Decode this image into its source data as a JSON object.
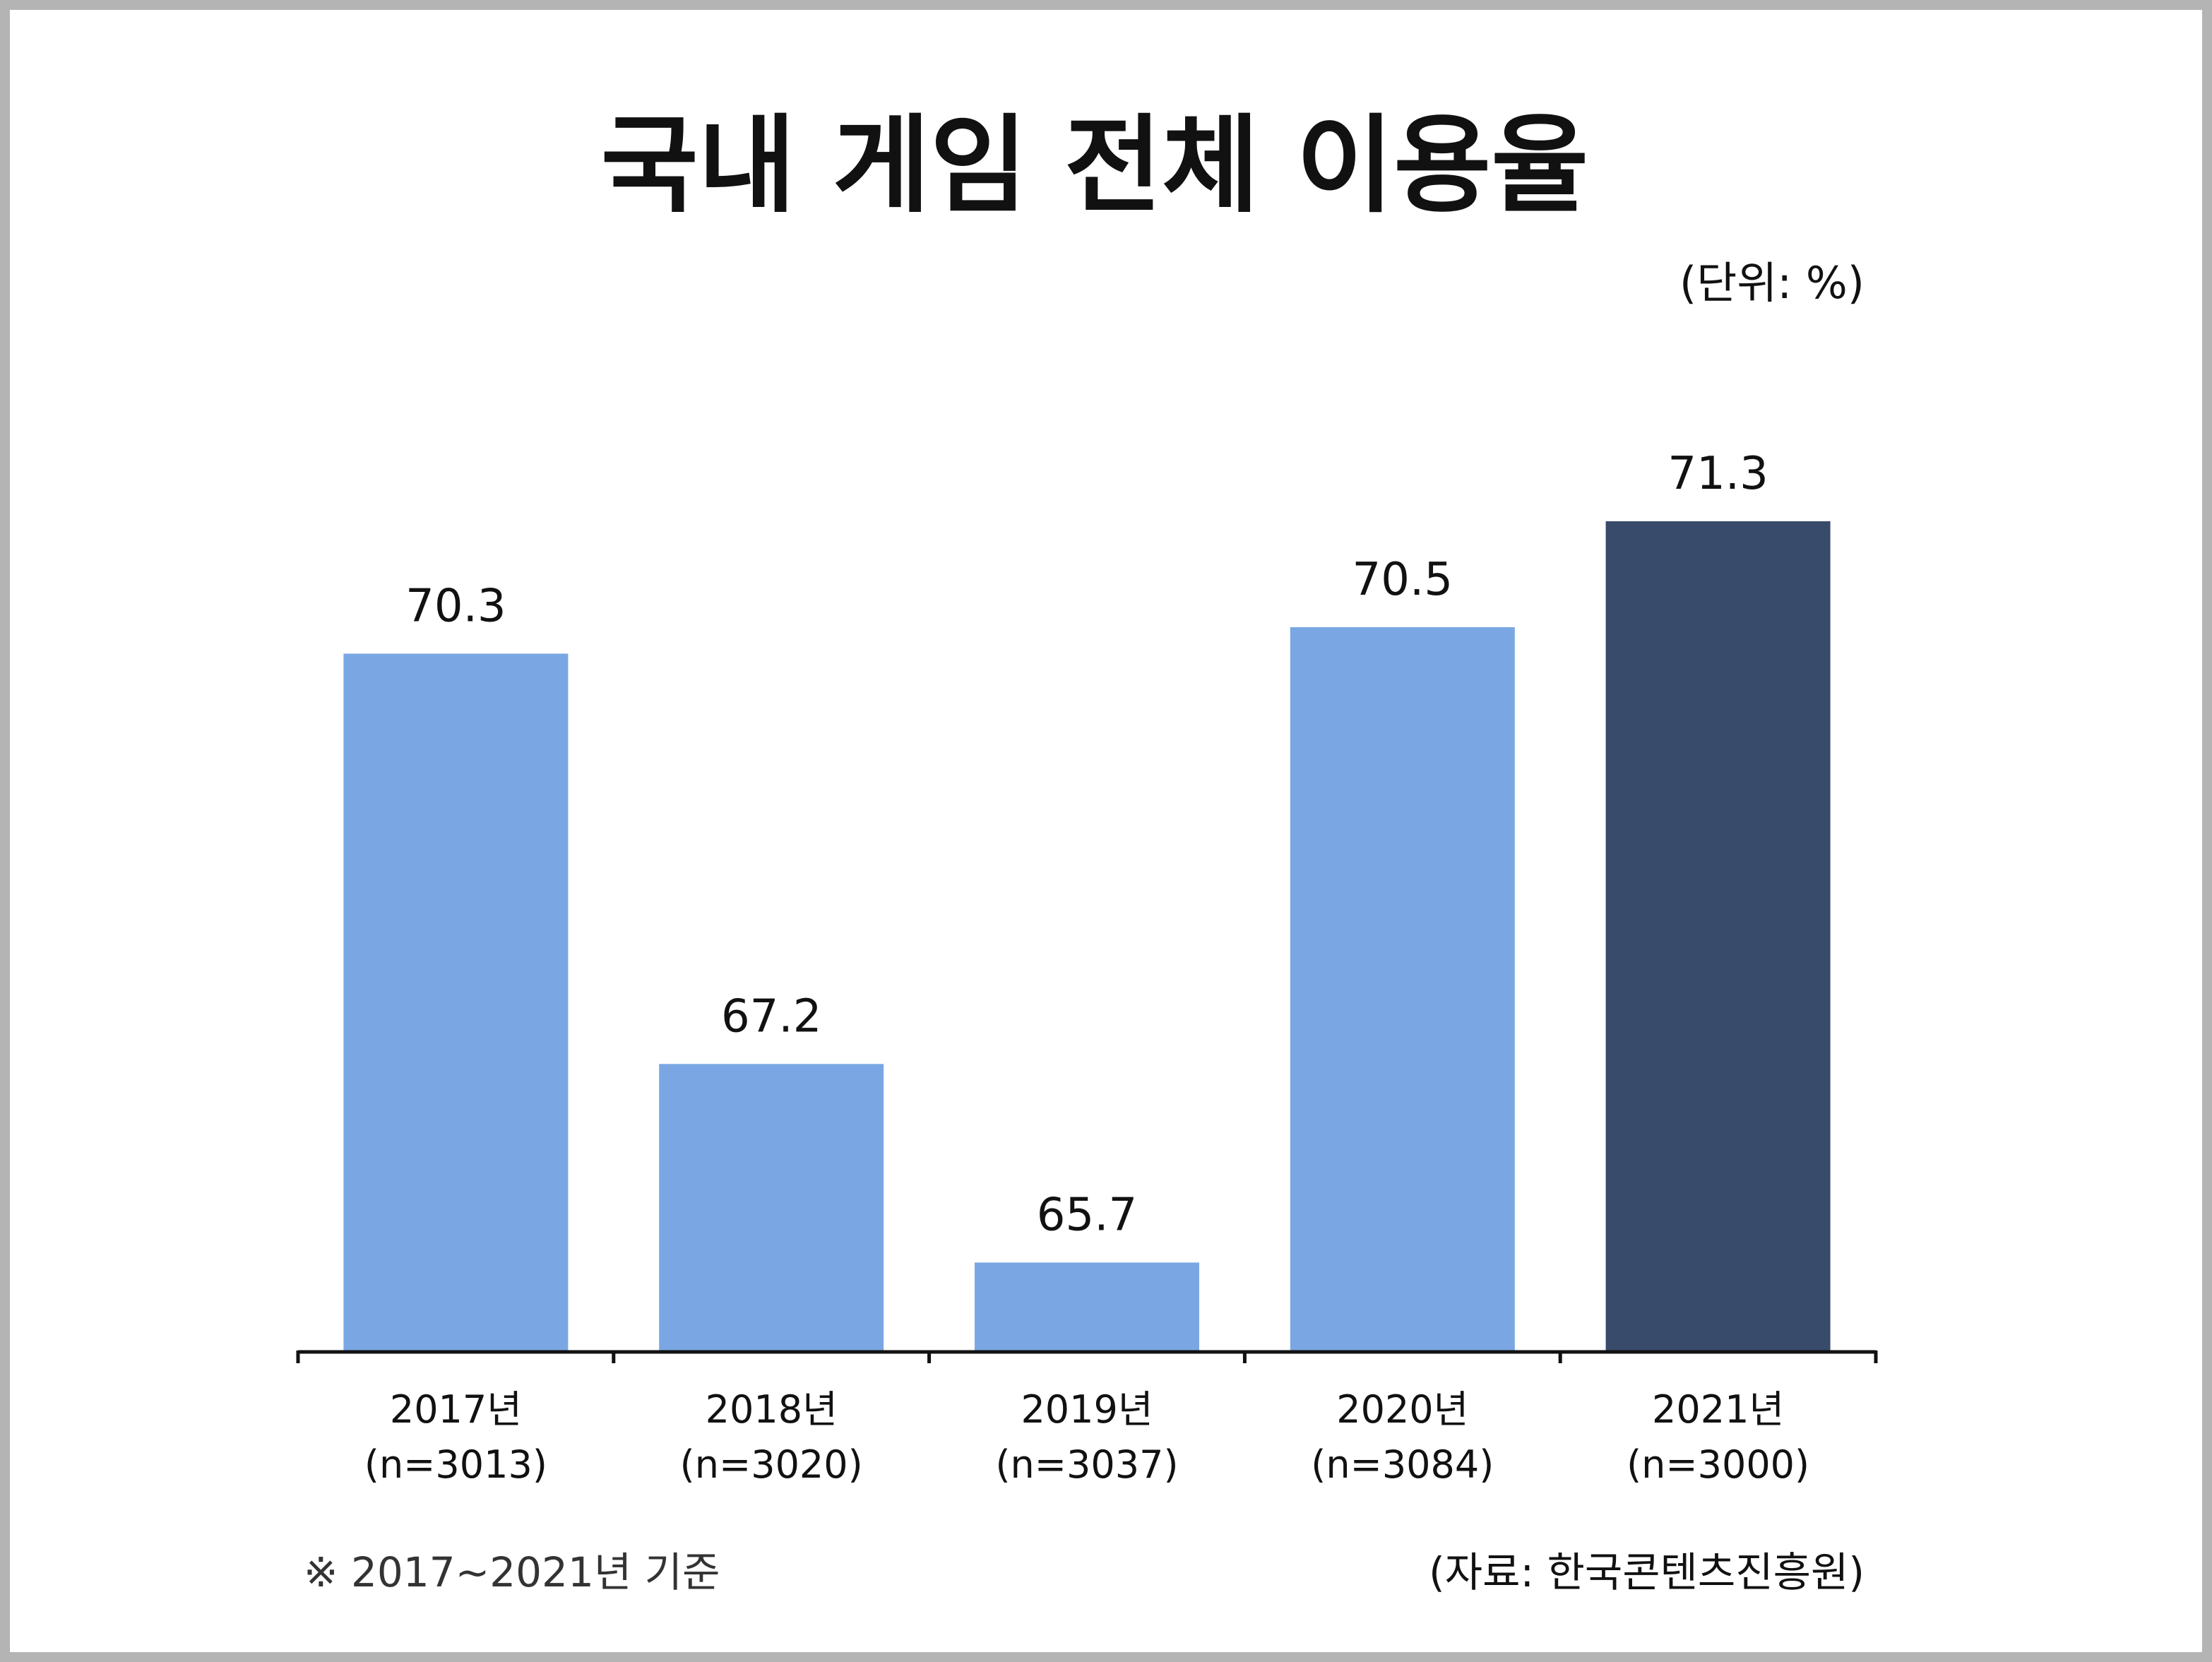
{
  "chart_data": {
    "type": "bar",
    "title": "국내 게임 전체 이용율",
    "unit_label": "(단위: %)",
    "categories": [
      "2017년",
      "2018년",
      "2019년",
      "2020년",
      "2021년"
    ],
    "category_sublabels": [
      "(n=3013)",
      "(n=3020)",
      "(n=3037)",
      "(n=3084)",
      "(n=3000)"
    ],
    "values": [
      70.3,
      67.2,
      65.7,
      70.5,
      71.3
    ],
    "value_labels": [
      "70.3",
      "67.2",
      "65.7",
      "70.5",
      "71.3"
    ],
    "bar_colors": [
      "#7aa7e3",
      "#7aa7e3",
      "#7aa7e3",
      "#7aa7e3",
      "#384b6b"
    ],
    "xlabel": "",
    "ylabel": "",
    "grid": false,
    "legend": "none",
    "note": "※ 2017~2021년 기준",
    "source": "(자료: 한국콘텐츠진흥원)"
  }
}
